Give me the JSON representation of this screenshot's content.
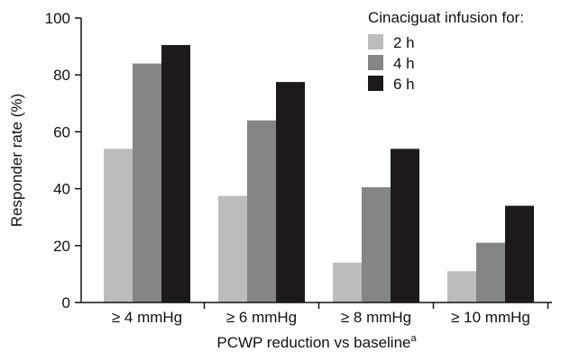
{
  "chart_data": {
    "type": "bar",
    "xlabel": "PCWP reduction vs baseline",
    "xlabel_superscript": "a",
    "ylabel": "Responder rate (%)",
    "ylim": [
      0,
      100
    ],
    "yticks": [
      0,
      20,
      40,
      60,
      80,
      100
    ],
    "categories": [
      "≥ 4 mmHg",
      "≥ 6 mmHg",
      "≥ 8 mmHg",
      "≥ 10 mmHg"
    ],
    "legend": {
      "title": "Cinaciguat infusion for:",
      "placement": "top-right"
    },
    "series": [
      {
        "name": "2 h",
        "color": "#bcbcbf",
        "values": [
          54,
          37.5,
          14,
          11
        ]
      },
      {
        "name": "4 h",
        "color": "#858588",
        "values": [
          84,
          64,
          40.5,
          21
        ]
      },
      {
        "name": "6 h",
        "color": "#1e1a1b",
        "values": [
          90.5,
          77.5,
          54,
          34
        ]
      }
    ],
    "grid": false
  }
}
